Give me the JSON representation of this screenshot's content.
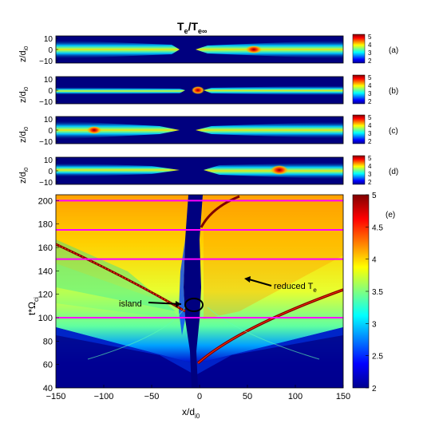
{
  "figure": {
    "title_main": "T",
    "title_sub1": "e",
    "title_slash": "/T",
    "title_sub2": "e∞",
    "panels": [
      {
        "letter": "(a)",
        "yticks": [
          "10",
          "0",
          "−10"
        ],
        "cbar_ticks": [
          "5",
          "4",
          "3",
          "2"
        ]
      },
      {
        "letter": "(b)",
        "yticks": [
          "10",
          "0",
          "−10"
        ],
        "cbar_ticks": [
          "5",
          "4",
          "3",
          "2"
        ]
      },
      {
        "letter": "(c)",
        "yticks": [
          "10",
          "0",
          "−10"
        ],
        "cbar_ticks": [
          "5",
          "4",
          "3",
          "2"
        ]
      },
      {
        "letter": "(d)",
        "yticks": [
          "10",
          "0",
          "−10"
        ],
        "cbar_ticks": [
          "5",
          "4",
          "3",
          "2"
        ]
      }
    ],
    "panel_ylabel_main": "z/d",
    "panel_ylabel_sub": "i0",
    "main_panel": {
      "letter": "(e)",
      "ylabel_main": "t*Ω",
      "ylabel_sub": "ci",
      "xlabel_main": "x/d",
      "xlabel_sub": "i0",
      "xticks": [
        "−150",
        "−100",
        "−50",
        "0",
        "50",
        "100",
        "150"
      ],
      "yticks": [
        "200",
        "180",
        "160",
        "140",
        "120",
        "100",
        "80",
        "60",
        "40"
      ],
      "cbar_ticks": [
        "5",
        "4.5",
        "4",
        "3.5",
        "3",
        "2.5",
        "2"
      ],
      "annotation_island": "island",
      "annotation_reduced": "reduced T",
      "annotation_reduced_sub": "e"
    }
  },
  "chart_data": {
    "type": "heatmap",
    "x_range": [
      -150,
      150
    ],
    "y_range": [
      40,
      205
    ],
    "colorbar_range": [
      2,
      5
    ],
    "colormap": "jet",
    "horizontal_lines_t": [
      200,
      175,
      150,
      100
    ],
    "strip_panels_z_range": [
      -10,
      10
    ]
  },
  "colors": {
    "bg_dark": "#00007f",
    "magenta": "#ff00ff",
    "ridge_dark": "#7f0000"
  }
}
